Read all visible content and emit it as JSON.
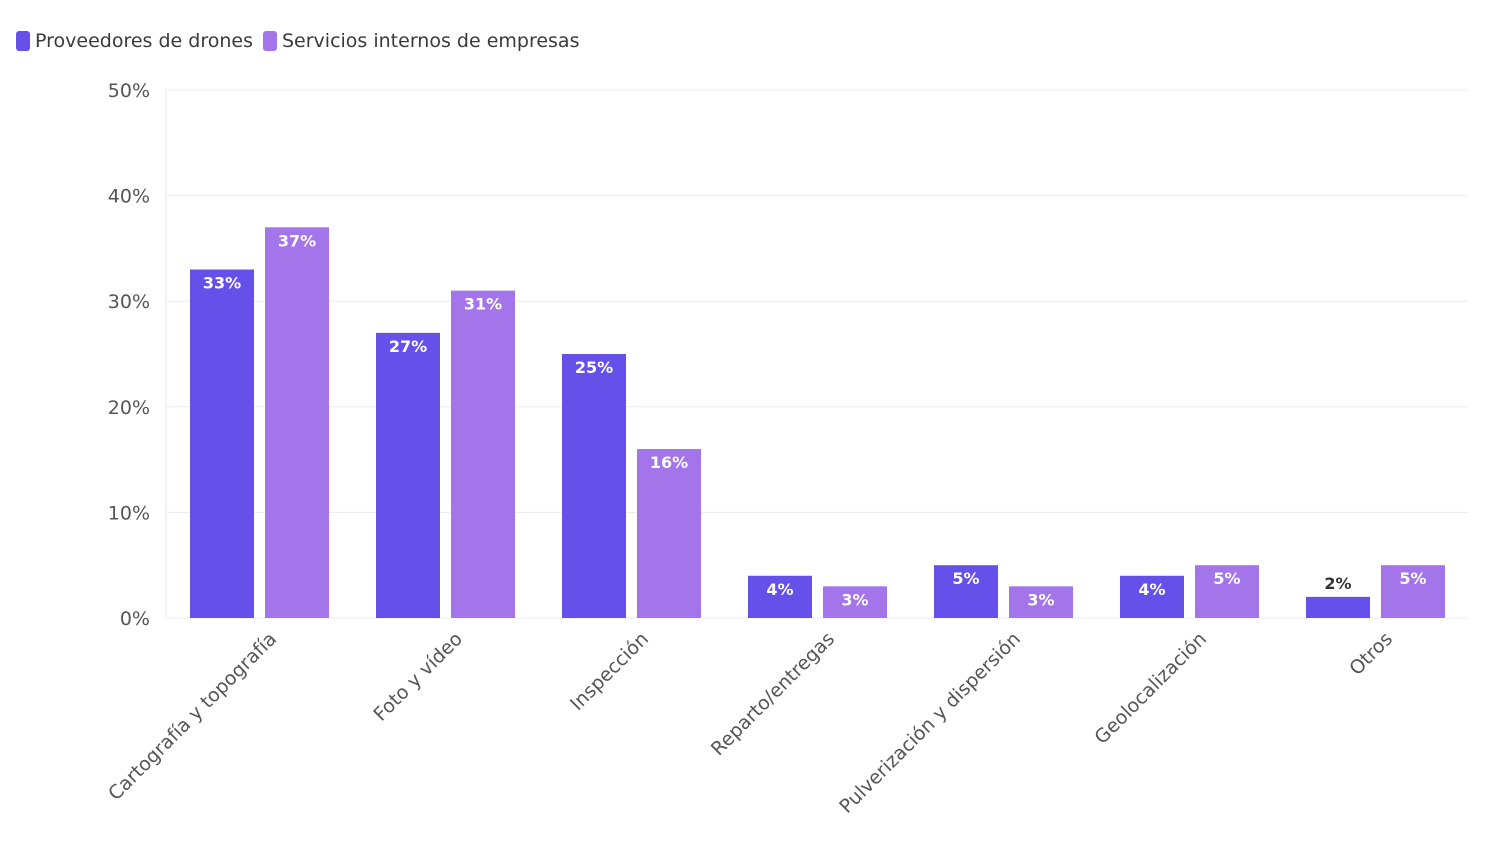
{
  "title": "",
  "legend": [
    {
      "name": "Proveedores de drones",
      "color": "#6650EA"
    },
    {
      "name": "Servicios internos de empresas",
      "color": "#A475EA"
    }
  ],
  "chart_data": {
    "type": "bar",
    "categories": [
      "Cartografía y topografía",
      "Foto y vídeo",
      "Inspección",
      "Reparto/entregas",
      "Pulverización y dispersión",
      "Geolocalización",
      "Otros"
    ],
    "series": [
      {
        "name": "Proveedores de drones",
        "values": [
          33,
          27,
          25,
          4,
          5,
          4,
          2
        ],
        "color": "#6650EA"
      },
      {
        "name": "Servicios internos de empresas",
        "values": [
          37,
          31,
          16,
          3,
          3,
          5,
          5
        ],
        "color": "#A475EA"
      }
    ],
    "yticks": [
      "0%",
      "10%",
      "20%",
      "30%",
      "40%",
      "50%"
    ],
    "ylim": [
      0,
      50
    ],
    "value_suffix": "%",
    "grid": true,
    "legend_position": "top-left"
  }
}
